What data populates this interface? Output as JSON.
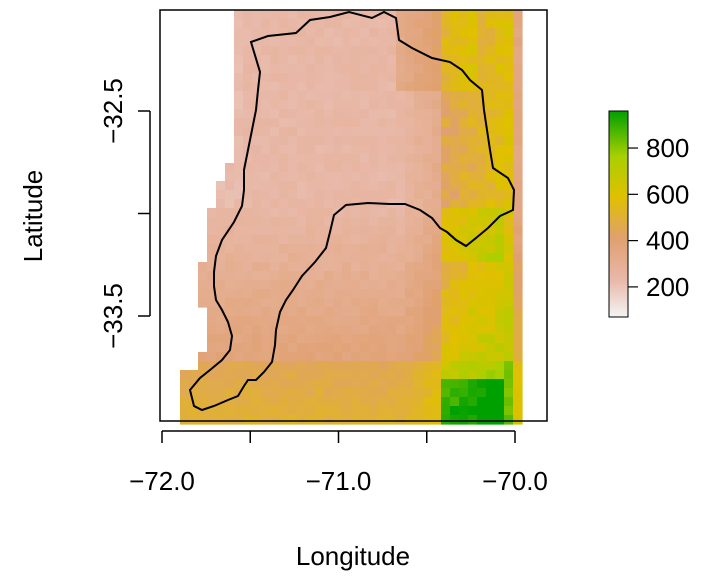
{
  "map": {
    "xlabel": "Longitude",
    "ylabel": "Latitude",
    "x_ticks": [
      {
        "value": -72.0,
        "label": "−72.0"
      },
      {
        "value": -71.5,
        "label": ""
      },
      {
        "value": -71.0,
        "label": "−71.0"
      },
      {
        "value": -70.5,
        "label": ""
      },
      {
        "value": -70.0,
        "label": "−70.0"
      }
    ],
    "y_ticks": [
      {
        "value": -32.5,
        "label": "−32.5"
      },
      {
        "value": -33.0,
        "label": ""
      },
      {
        "value": -33.5,
        "label": "−33.5"
      }
    ],
    "xlim": [
      -72.0,
      -69.8
    ],
    "ylim": [
      -34.04,
      -31.99
    ],
    "legend": {
      "ticks": [
        {
          "value": 200,
          "label": "200"
        },
        {
          "value": 400,
          "label": "400"
        },
        {
          "value": 600,
          "label": "600"
        },
        {
          "value": 800,
          "label": "800"
        }
      ],
      "range": [
        70,
        960
      ],
      "colors": [
        "#f2f2f2",
        "#e8b8a8",
        "#e0a070",
        "#e0c000",
        "#a8d000",
        "#00a600"
      ]
    }
  }
}
